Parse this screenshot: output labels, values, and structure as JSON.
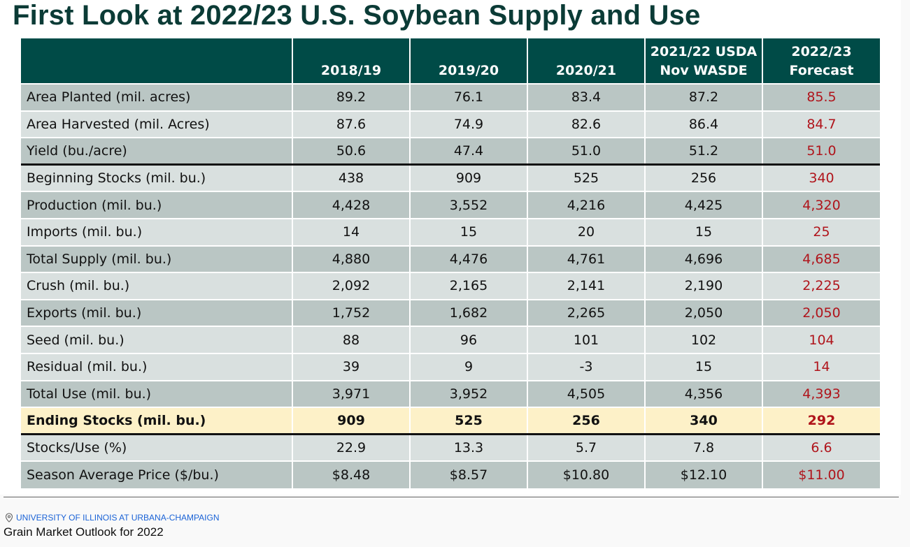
{
  "slide": {
    "title": "First Look at 2022/23 U.S. Soybean Supply and Use",
    "headers": [
      "",
      "2018/19",
      "2019/20",
      "2020/21",
      "2021/22 USDA Nov WASDE",
      "2022/23 Forecast"
    ],
    "rows": [
      {
        "label": "Area Planted (mil. acres)",
        "values": [
          "89.2",
          "76.1",
          "83.4",
          "87.2",
          "85.5"
        ]
      },
      {
        "label": "Area Harvested (mil. Acres)",
        "values": [
          "87.6",
          "74.9",
          "82.6",
          "86.4",
          "84.7"
        ]
      },
      {
        "label": "Yield (bu./acre)",
        "values": [
          "50.6",
          "47.4",
          "51.0",
          "51.2",
          "51.0"
        ]
      },
      {
        "label": "Beginning Stocks (mil. bu.)",
        "values": [
          "438",
          "909",
          "525",
          "256",
          "340"
        ]
      },
      {
        "label": "Production (mil. bu.)",
        "values": [
          "4,428",
          "3,552",
          "4,216",
          "4,425",
          "4,320"
        ]
      },
      {
        "label": "Imports (mil. bu.)",
        "values": [
          "14",
          "15",
          "20",
          "15",
          "25"
        ]
      },
      {
        "label": "Total Supply (mil. bu.)",
        "values": [
          "4,880",
          "4,476",
          "4,761",
          "4,696",
          "4,685"
        ]
      },
      {
        "label": "Crush (mil. bu.)",
        "values": [
          "2,092",
          "2,165",
          "2,141",
          "2,190",
          "2,225"
        ]
      },
      {
        "label": "Exports (mil. bu.)",
        "values": [
          "1,752",
          "1,682",
          "2,265",
          "2,050",
          "2,050"
        ]
      },
      {
        "label": "Seed (mil. bu.)",
        "values": [
          "88",
          "96",
          "101",
          "102",
          "104"
        ]
      },
      {
        "label": "Residual (mil. bu.)",
        "values": [
          "39",
          "9",
          "-3",
          "15",
          "14"
        ]
      },
      {
        "label": "Total Use (mil. bu.)",
        "values": [
          "3,971",
          "3,952",
          "4,505",
          "4,356",
          "4,393"
        ]
      },
      {
        "label": "Ending Stocks (mil. bu.)",
        "values": [
          "909",
          "525",
          "256",
          "340",
          "292"
        ]
      },
      {
        "label": "Stocks/Use (%)",
        "values": [
          "22.9",
          "13.3",
          "5.7",
          "7.8",
          "6.6"
        ]
      },
      {
        "label": "Season Average Price ($/bu.)",
        "values": [
          "$8.48",
          "$8.57",
          "$10.80",
          "$12.10",
          "$11.00"
        ]
      }
    ],
    "colors": {
      "header": "#004b47",
      "forecast": "#b0141b",
      "highlight": "#fdf1c8"
    }
  },
  "video": {
    "location": "UNIVERSITY OF ILLINOIS AT URBANA-CHAMPAIGN",
    "location_icon": "map-pin-icon",
    "title": "Grain Market Outlook for 2022"
  }
}
